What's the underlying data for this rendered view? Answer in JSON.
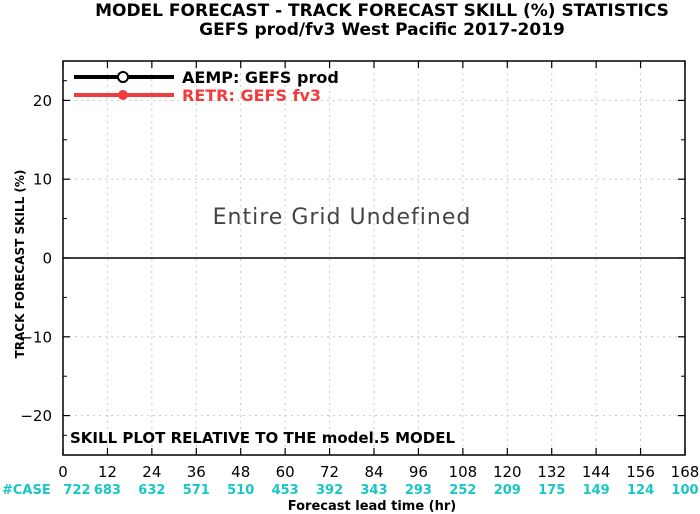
{
  "chart_data": {
    "type": "line",
    "title": "MODEL FORECAST - TRACK FORECAST SKILL (%) STATISTICS",
    "subtitle": "GEFS prod/fv3 West Pacific 2017-2019",
    "xlabel": "Forecast lead time (hr)",
    "ylabel": "TRACK FORECAST SKILL (%)",
    "xlim": [
      0,
      168
    ],
    "ylim": [
      -25,
      25
    ],
    "x_ticks": [
      0,
      12,
      24,
      36,
      48,
      60,
      72,
      84,
      96,
      108,
      120,
      132,
      144,
      156,
      168
    ],
    "y_ticks": [
      -20,
      -10,
      0,
      10,
      20
    ],
    "grid": true,
    "legend_position": "top-left",
    "series": [
      {
        "name": "AEMP: GEFS prod",
        "color": "#000000",
        "marker": "circle",
        "values": []
      },
      {
        "name": "RETR: GEFS fv3",
        "color": "#f03c3c",
        "marker": "circle",
        "values": []
      }
    ],
    "case_label": "#CASE",
    "case_counts": [
      "722",
      "683",
      "632",
      "571",
      "510",
      "453",
      "392",
      "343",
      "293",
      "252",
      "209",
      "175",
      "149",
      "124",
      "100"
    ],
    "annotation": "SKILL PLOT RELATIVE TO THE model.5 MODEL",
    "undefined_message": "Entire Grid Undefined",
    "colors": {
      "case_counts": "#18c6c6",
      "grid": "#c8c8c8",
      "zero_line": "#000000"
    }
  }
}
